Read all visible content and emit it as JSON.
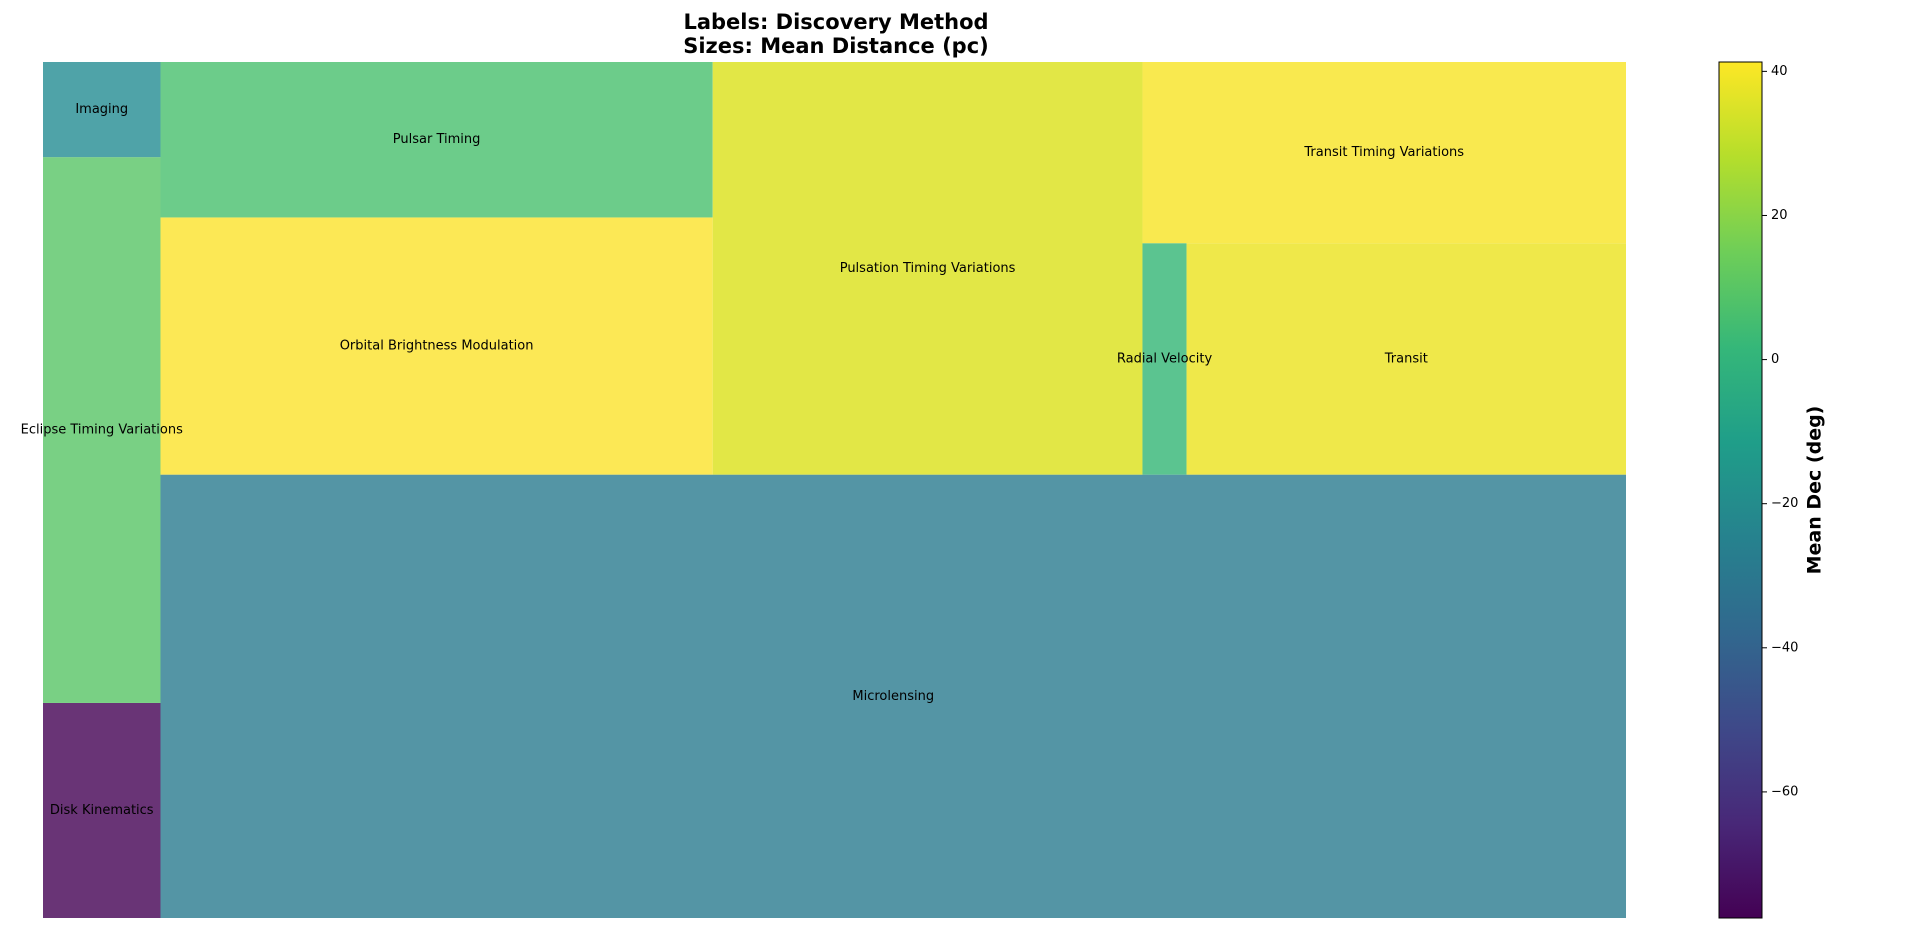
{
  "chart_data": {
    "type": "treemap",
    "title_lines": [
      "Labels: Discovery Method",
      "Sizes: Mean Distance (pc)"
    ],
    "categories": [
      "Disk Kinematics",
      "Eclipse Timing Variations",
      "Imaging",
      "Microlensing",
      "Orbital Brightness Modulation",
      "Pulsar Timing",
      "Pulsation Timing Variations",
      "Radial Velocity",
      "Transit",
      "Transit Timing Variations"
    ],
    "values": [
      156,
      396,
      69,
      4012,
      877,
      530,
      1095,
      63,
      628,
      541
    ],
    "color_values": [
      -77.5,
      5,
      -22,
      -29,
      39,
      8,
      34,
      1,
      38,
      41.3
    ],
    "colors": [
      "#693476",
      "#79d084",
      "#4fa3a8",
      "#5495a5",
      "#fce855",
      "#6ccc8a",
      "#e2e746",
      "#5bc490",
      "#efe84a",
      "#f9e94f"
    ],
    "colorbar": {
      "label": "Mean Dec (deg)",
      "lim": [
        -77.5,
        41.3
      ],
      "ticks": [
        {
          "value": -60,
          "label": "−60"
        },
        {
          "value": -40,
          "label": "−40"
        },
        {
          "value": -20,
          "label": "−20"
        },
        0,
        20,
        40
      ],
      "colormap": [
        "#440154",
        "#482878",
        "#3e4989",
        "#31688e",
        "#26828e",
        "#1f9e89",
        "#35b779",
        "#6ece58",
        "#b5de2b",
        "#fde725"
      ]
    }
  }
}
